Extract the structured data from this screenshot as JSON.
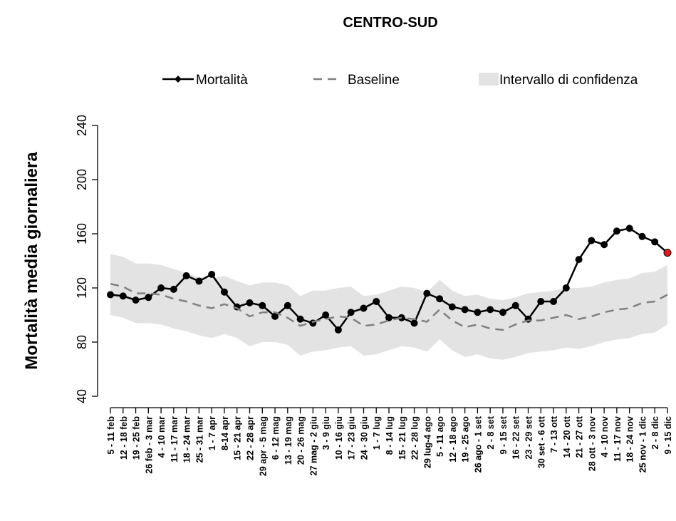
{
  "chart_data": {
    "type": "line",
    "title": "CENTRO-SUD",
    "y_label": "Mortalità media giornaliera",
    "categories": [
      "5 - 11 feb",
      "12 - 18 feb",
      "19 - 25 feb",
      "26 feb - 3 mar",
      "4 - 10 mar",
      "11 - 17 mar",
      "18 - 24 mar",
      "25 - 31 mar",
      "1 - 7 apr",
      "8-14 apr",
      "15 - 21 apr",
      "22 - 28 apr",
      "29 apr - 5 mag",
      "6 - 12 mag",
      "13 - 19 mag",
      "20 - 26 mag",
      "27 mag - 2 giu",
      "3 - 9 giu",
      "10 - 16 giu",
      "17 - 23 giu",
      "24 - 30 giu",
      "1 - 7 lug",
      "8 - 14 lug",
      "15 - 21 lug",
      "22 - 28 lug",
      "29 lug-4 ago",
      "5 - 11 ago",
      "12 - 18 ago",
      "19 - 25 ago",
      "26 ago - 1 set",
      "2 - 8 set",
      "9 - 15 set",
      "16 - 22 set",
      "23 - 29 set",
      "30 set - 6 ott",
      "7 - 13 ott",
      "14 - 20 ott",
      "21 - 27 ott",
      "28 ott - 3 nov",
      "4 - 10 nov",
      "11 - 17 nov",
      "18 - 24 nov",
      "25 nov - 1 dic",
      "2 - 8 dic",
      "9 - 15 dic"
    ],
    "series": [
      {
        "name": "Mortalità",
        "color": "#000000",
        "last_point_color": "#e8161b",
        "values": [
          115,
          114,
          111,
          113,
          120,
          119,
          129,
          125,
          130,
          117,
          106,
          109,
          107,
          99,
          107,
          97,
          94,
          100,
          89,
          102,
          105,
          110,
          98,
          98,
          94,
          116,
          112,
          106,
          104,
          102,
          104,
          102,
          107,
          97,
          110,
          110,
          120,
          141,
          155,
          152,
          162,
          164,
          158,
          154,
          146
        ]
      },
      {
        "name": "Baseline",
        "color": "#808080",
        "dashed": true,
        "values": [
          123,
          121,
          116,
          116,
          115,
          112,
          110,
          107,
          105,
          108,
          105,
          99,
          102,
          102,
          98,
          92,
          95,
          97,
          99,
          98,
          92,
          93,
          96,
          98,
          97,
          95,
          104,
          96,
          91,
          93,
          90,
          89,
          93,
          96,
          96,
          98,
          100,
          97,
          99,
          102,
          104,
          105,
          109,
          110,
          115
        ]
      },
      {
        "name": "Intervallo di confidenza",
        "color": "#e3e3e3",
        "band": true,
        "upper": [
          145,
          143,
          138,
          138,
          137,
          134,
          131,
          128,
          127,
          129,
          125,
          122,
          124,
          124,
          122,
          114,
          118,
          118,
          120,
          121,
          114,
          115,
          118,
          121,
          120,
          117,
          126,
          118,
          114,
          115,
          112,
          111,
          113,
          116,
          117,
          118,
          120,
          120,
          121,
          124,
          126,
          127,
          131,
          132,
          137
        ],
        "lower": [
          100,
          98,
          94,
          94,
          93,
          90,
          88,
          85,
          83,
          86,
          83,
          77,
          80,
          80,
          78,
          70,
          73,
          74,
          76,
          77,
          70,
          71,
          74,
          77,
          76,
          73,
          82,
          74,
          69,
          71,
          68,
          67,
          69,
          72,
          73,
          74,
          76,
          75,
          77,
          80,
          82,
          83,
          86,
          87,
          93
        ]
      }
    ],
    "ylim": [
      40,
      240
    ],
    "yticks": [
      40,
      80,
      120,
      160,
      200,
      240
    ]
  }
}
